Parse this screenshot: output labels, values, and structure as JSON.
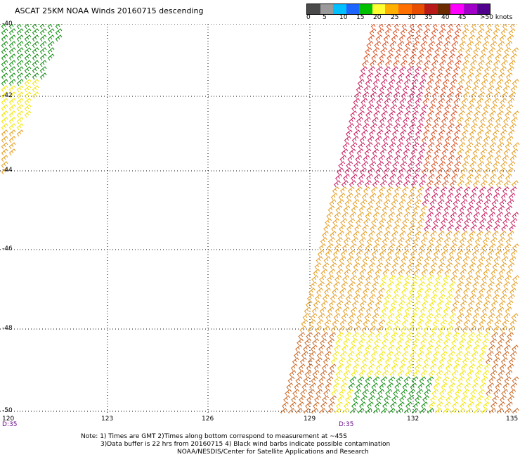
{
  "title": "ASCAT 25KM NOAA Winds 20160715 descending",
  "colorbar": {
    "labels": [
      "0",
      "5",
      "10",
      "15",
      "20",
      "25",
      "30",
      "35",
      "40",
      "45",
      ">50 knots"
    ],
    "colors": [
      "#4a4a4a",
      "#9a9a9a",
      "#00bfff",
      "#1e64ff",
      "#00c000",
      "#ffff33",
      "#ffb000",
      "#ff7000",
      "#e84e00",
      "#b81a1a",
      "#6b2a00",
      "#ff00ff",
      "#a000c8",
      "#50008c"
    ]
  },
  "lat_labels": [
    "-40",
    "-42",
    "-44",
    "-46",
    "-48",
    "-50"
  ],
  "lon_labels": [
    "120",
    "123",
    "126",
    "129",
    "132",
    "135"
  ],
  "time_labels": [
    "D:35",
    "D:35"
  ],
  "note": {
    "line1": "Note: 1) Times are GMT 2)Times along bottom correspond to measurement at ~45S",
    "line2": "3)Data buffer is 22 hrs from 20160715 4) Black wind barbs indicate possible contamination",
    "line3": "NOAA/NESDIS/Center for Satellite Applications and Research"
  },
  "barb_colors": {
    "green": "#0b8c0b",
    "yellow": "#f2e600",
    "orange": "#e49b1c",
    "dark_orange": "#c8641e",
    "red_orange": "#d94a1a",
    "crimson": "#c8185c"
  }
}
